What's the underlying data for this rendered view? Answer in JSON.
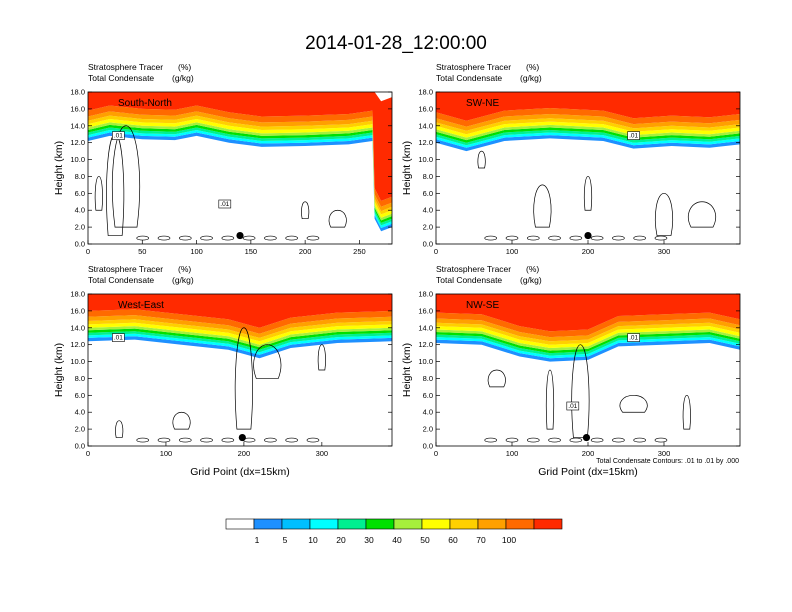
{
  "figure": {
    "title": "2014-01-28_12:00:00",
    "contour_note": "Total Condensate Contours: .01 to .01 by .000",
    "colors": {
      "high_tracer": "#ff2a00",
      "contour_line": "#000000",
      "marker": "#000000"
    }
  },
  "colorbar": {
    "labels": [
      "1",
      "5",
      "10",
      "20",
      "30",
      "40",
      "50",
      "60",
      "70",
      "100"
    ],
    "colors": [
      "#ffffff",
      "#1e90ff",
      "#00bfff",
      "#00ffff",
      "#00f090",
      "#00e000",
      "#a6f03c",
      "#ffff00",
      "#ffd000",
      "#ffa000",
      "#ff6a00",
      "#ff2a00"
    ]
  },
  "chart_data": [
    {
      "type": "heatmap",
      "panel_label": "South-North",
      "subtitle_left_1": "Stratosphere Tracer",
      "subtitle_right_1": "(%)",
      "subtitle_left_2": "Total Condensate",
      "subtitle_right_2": "(g/kg)",
      "ylabel": "Height (km)",
      "xlabel": "",
      "xlim": [
        0,
        280
      ],
      "ylim": [
        0,
        18
      ],
      "xticks": [
        "0",
        "50",
        "100",
        "150",
        "200",
        "250"
      ],
      "xtick_values": [
        0,
        50,
        100,
        150,
        200,
        250
      ],
      "yticks": [
        "0.0",
        "2.0",
        "4.0",
        "6.0",
        "8.0",
        "10.0",
        "12.0",
        "14.0",
        "16.0",
        "18.0"
      ],
      "tropopause_km": [
        [
          0,
          15.2
        ],
        [
          20,
          15.8
        ],
        [
          50,
          15.4
        ],
        [
          80,
          15.3
        ],
        [
          100,
          15.8
        ],
        [
          130,
          15.0
        ],
        [
          160,
          14.5
        ],
        [
          200,
          14.6
        ],
        [
          240,
          14.8
        ],
        [
          262,
          15.2
        ],
        [
          264,
          6.0
        ],
        [
          270,
          4.5
        ],
        [
          280,
          5.0
        ]
      ],
      "contour_labels": [
        ".01",
        ".01",
        ".01"
      ],
      "marker": {
        "x": 140,
        "y": 1.0
      }
    },
    {
      "type": "heatmap",
      "panel_label": "SW-NE",
      "subtitle_left_1": "Stratosphere Tracer",
      "subtitle_right_1": "(%)",
      "subtitle_left_2": "Total Condensate",
      "subtitle_right_2": "(g/kg)",
      "ylabel": "Height (km)",
      "xlabel": "",
      "xlim": [
        0,
        400
      ],
      "ylim": [
        0,
        18
      ],
      "xticks": [
        "0",
        "100",
        "200",
        "300"
      ],
      "xtick_values": [
        0,
        100,
        200,
        300
      ],
      "yticks": [
        "0.0",
        "2.0",
        "4.0",
        "6.0",
        "8.0",
        "10.0",
        "12.0",
        "14.0",
        "16.0",
        "18.0"
      ],
      "tropopause_km": [
        [
          0,
          15.0
        ],
        [
          40,
          14.0
        ],
        [
          90,
          15.2
        ],
        [
          150,
          15.5
        ],
        [
          220,
          15.2
        ],
        [
          260,
          14.3
        ],
        [
          310,
          14.6
        ],
        [
          360,
          14.4
        ],
        [
          400,
          14.8
        ]
      ],
      "contour_labels": [
        ".01"
      ],
      "marker": {
        "x": 200,
        "y": 1.0
      }
    },
    {
      "type": "heatmap",
      "panel_label": "West-East",
      "subtitle_left_1": "Stratosphere Tracer",
      "subtitle_right_1": "(%)",
      "subtitle_left_2": "Total Condensate",
      "subtitle_right_2": "(g/kg)",
      "ylabel": "Height (km)",
      "xlabel": "Grid Point (dx=15km)",
      "xlim": [
        0,
        390
      ],
      "ylim": [
        0,
        18
      ],
      "xticks": [
        "0",
        "100",
        "200",
        "300"
      ],
      "xtick_values": [
        0,
        100,
        200,
        300
      ],
      "yticks": [
        "0.0",
        "2.0",
        "4.0",
        "6.0",
        "8.0",
        "10.0",
        "12.0",
        "14.0",
        "16.0",
        "18.0"
      ],
      "tropopause_km": [
        [
          0,
          15.4
        ],
        [
          60,
          15.6
        ],
        [
          120,
          15.0
        ],
        [
          180,
          14.4
        ],
        [
          220,
          13.4
        ],
        [
          260,
          14.6
        ],
        [
          320,
          15.2
        ],
        [
          390,
          15.4
        ]
      ],
      "contour_labels": [
        ".01"
      ],
      "marker": {
        "x": 198,
        "y": 1.0
      }
    },
    {
      "type": "heatmap",
      "panel_label": "NW-SE",
      "subtitle_left_1": "Stratosphere Tracer",
      "subtitle_right_1": "(%)",
      "subtitle_left_2": "Total Condensate",
      "subtitle_right_2": "(g/kg)",
      "ylabel": "Height (km)",
      "xlabel": "Grid Point (dx=15km)",
      "xlim": [
        0,
        400
      ],
      "ylim": [
        0,
        18
      ],
      "xticks": [
        "0",
        "100",
        "200",
        "300"
      ],
      "xtick_values": [
        0,
        100,
        200,
        300
      ],
      "yticks": [
        "0.0",
        "2.0",
        "4.0",
        "6.0",
        "8.0",
        "10.0",
        "12.0",
        "14.0",
        "16.0",
        "18.0"
      ],
      "tropopause_km": [
        [
          0,
          15.2
        ],
        [
          60,
          15.0
        ],
        [
          110,
          13.6
        ],
        [
          150,
          13.0
        ],
        [
          200,
          13.2
        ],
        [
          240,
          14.8
        ],
        [
          300,
          15.0
        ],
        [
          360,
          15.2
        ],
        [
          400,
          14.4
        ]
      ],
      "contour_labels": [
        ".01",
        ".01"
      ],
      "marker": {
        "x": 198,
        "y": 1.0
      }
    }
  ]
}
